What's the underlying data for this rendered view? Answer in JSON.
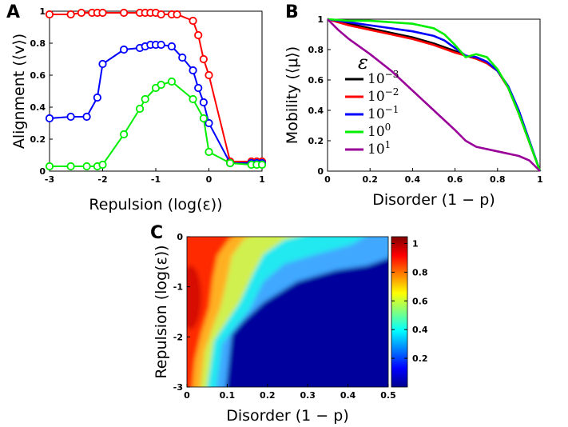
{
  "chart_data": [
    {
      "panel": "A",
      "type": "line",
      "xlabel": "Repulsion (log(ε))",
      "ylabel": "Alignment (⟨v⟩)",
      "xlim": [
        -3,
        1
      ],
      "ylim": [
        0,
        1
      ],
      "xticks": [
        "-3",
        "-2",
        "-1",
        "0",
        "1"
      ],
      "yticks": [
        "0",
        "0.2",
        "0.4",
        "0.6",
        "0.8",
        "1"
      ],
      "grid": false,
      "markers": "open circles",
      "series": [
        {
          "color": "#ff0000",
          "x": [
            -3,
            -2.6,
            -2.4,
            -2.2,
            -2.1,
            -2.0,
            -1.6,
            -1.3,
            -1.2,
            -1.1,
            -1.0,
            -0.9,
            -0.7,
            -0.6,
            -0.3,
            -0.2,
            -0.1,
            0.0,
            0.4,
            0.8,
            0.9,
            1.0
          ],
          "y": [
            0.98,
            0.98,
            0.99,
            0.99,
            0.99,
            0.99,
            0.99,
            0.99,
            0.99,
            0.99,
            0.99,
            0.98,
            0.98,
            0.98,
            0.94,
            0.85,
            0.7,
            0.6,
            0.06,
            0.06,
            0.06,
            0.06
          ]
        },
        {
          "color": "#0000ff",
          "x": [
            -3,
            -2.6,
            -2.3,
            -2.1,
            -2.0,
            -1.6,
            -1.3,
            -1.2,
            -1.1,
            -1.0,
            -0.9,
            -0.7,
            -0.5,
            -0.3,
            -0.2,
            -0.1,
            0.0,
            0.4,
            0.8,
            0.9,
            1.0
          ],
          "y": [
            0.33,
            0.34,
            0.34,
            0.46,
            0.67,
            0.76,
            0.77,
            0.78,
            0.79,
            0.79,
            0.79,
            0.78,
            0.71,
            0.63,
            0.52,
            0.43,
            0.3,
            0.05,
            0.05,
            0.05,
            0.05
          ]
        },
        {
          "color": "#00ee00",
          "x": [
            -3,
            -2.6,
            -2.3,
            -2.1,
            -2.0,
            -1.6,
            -1.3,
            -1.2,
            -1.0,
            -0.9,
            -0.7,
            -0.3,
            -0.1,
            0.0,
            0.4,
            0.8,
            0.9,
            1.0
          ],
          "y": [
            0.03,
            0.03,
            0.03,
            0.03,
            0.04,
            0.23,
            0.39,
            0.45,
            0.52,
            0.54,
            0.56,
            0.45,
            0.33,
            0.12,
            0.05,
            0.04,
            0.04,
            0.04
          ]
        }
      ]
    },
    {
      "panel": "B",
      "type": "line",
      "xlabel": "Disorder (1 − p)",
      "ylabel": "Mobility (⟨μ⟩)",
      "xlim": [
        0,
        1
      ],
      "ylim": [
        0,
        1
      ],
      "xticks": [
        "0",
        "0.2",
        "0.4",
        "0.6",
        "0.8",
        "1"
      ],
      "yticks": [
        "0",
        "0.2",
        "0.4",
        "0.6",
        "0.8",
        "1"
      ],
      "grid": false,
      "legend_title": "ε",
      "legend_position": "middle-left",
      "series": [
        {
          "name_base": "10",
          "name_exp": "−3",
          "color": "#000000",
          "x": [
            0,
            0.1,
            0.2,
            0.3,
            0.4,
            0.5,
            0.6,
            0.65,
            0.7,
            0.75,
            0.8,
            0.85,
            0.9,
            0.95,
            1.0
          ],
          "y": [
            1.0,
            0.97,
            0.94,
            0.91,
            0.88,
            0.84,
            0.79,
            0.76,
            0.74,
            0.71,
            0.66,
            0.55,
            0.38,
            0.19,
            0.0
          ]
        },
        {
          "name_base": "10",
          "name_exp": "−2",
          "color": "#ff0000",
          "x": [
            0,
            0.1,
            0.2,
            0.3,
            0.4,
            0.5,
            0.6,
            0.65,
            0.7,
            0.75,
            0.8,
            0.85,
            0.9,
            0.95,
            1.0
          ],
          "y": [
            1.0,
            0.96,
            0.93,
            0.9,
            0.87,
            0.83,
            0.78,
            0.76,
            0.74,
            0.71,
            0.66,
            0.55,
            0.38,
            0.19,
            0.0
          ]
        },
        {
          "name_base": "10",
          "name_exp": "−1",
          "color": "#0000ff",
          "x": [
            0,
            0.1,
            0.2,
            0.3,
            0.4,
            0.5,
            0.55,
            0.6,
            0.65,
            0.7,
            0.75,
            0.8,
            0.85,
            0.9,
            0.95,
            1.0
          ],
          "y": [
            1.0,
            0.98,
            0.96,
            0.94,
            0.92,
            0.89,
            0.86,
            0.81,
            0.76,
            0.75,
            0.72,
            0.66,
            0.56,
            0.4,
            0.2,
            0.0
          ]
        },
        {
          "name_base": "10",
          "name_exp": "0",
          "color": "#00ee00",
          "x": [
            0,
            0.1,
            0.2,
            0.3,
            0.4,
            0.5,
            0.55,
            0.6,
            0.65,
            0.7,
            0.75,
            0.8,
            0.85,
            0.9,
            0.95,
            1.0
          ],
          "y": [
            1.0,
            0.99,
            0.99,
            0.98,
            0.97,
            0.94,
            0.9,
            0.83,
            0.75,
            0.77,
            0.75,
            0.67,
            0.55,
            0.38,
            0.19,
            0.0
          ]
        },
        {
          "name_base": "10",
          "name_exp": "1",
          "color": "#990099",
          "x": [
            0,
            0.05,
            0.1,
            0.2,
            0.3,
            0.4,
            0.5,
            0.6,
            0.65,
            0.7,
            0.8,
            0.9,
            0.95,
            1.0
          ],
          "y": [
            1.0,
            0.93,
            0.87,
            0.77,
            0.66,
            0.53,
            0.4,
            0.27,
            0.2,
            0.16,
            0.13,
            0.1,
            0.07,
            0.0
          ]
        }
      ]
    },
    {
      "panel": "C",
      "type": "heatmap",
      "xlabel": "Disorder (1 − p)",
      "ylabel": "Repulsion (log(ε))",
      "xlim": [
        0,
        0.5
      ],
      "ylim": [
        -3,
        0
      ],
      "xticks": [
        "0",
        "0.1",
        "0.2",
        "0.3",
        "0.4",
        "0.5"
      ],
      "yticks": [
        "0",
        "-1",
        "-2",
        "-3"
      ],
      "colorbar": {
        "min": 0,
        "max": 1,
        "ticks": [
          "0.2",
          "0.4",
          "0.6",
          "0.8",
          "1"
        ],
        "colormap": "jet"
      },
      "description": "Alignment as a function of disorder and repulsion",
      "boundary_y": [
        0,
        -0.5,
        -1,
        -1.5,
        -1.8,
        -2,
        -2.5,
        -3
      ],
      "boundary_x": [
        0.16,
        0.2,
        0.21,
        0.17,
        0.13,
        0.11,
        0.1,
        0.1
      ]
    }
  ]
}
